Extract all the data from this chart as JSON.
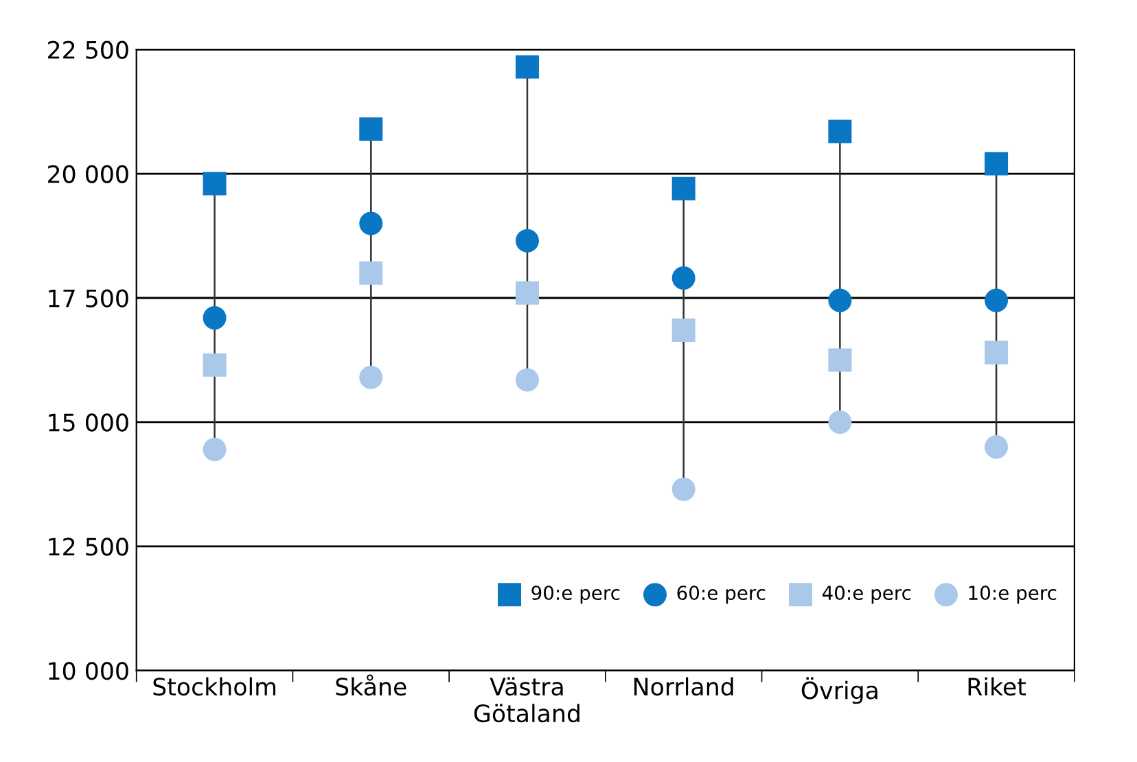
{
  "chart_data": {
    "type": "scatter",
    "categories": [
      "Stockholm",
      "Skåne",
      "Västra\nGötaland",
      "Norrland",
      "Övriga",
      "Riket"
    ],
    "series": [
      {
        "name": "90:e perc",
        "color": "#0a77c5",
        "marker": "square",
        "values": [
          19800,
          20900,
          22150,
          19700,
          20850,
          20200
        ]
      },
      {
        "name": "60:e perc",
        "color": "#0a77c5",
        "marker": "circle",
        "values": [
          17100,
          19000,
          18650,
          17900,
          17450,
          17450
        ]
      },
      {
        "name": "40:e perc",
        "color": "#aac8ea",
        "marker": "square",
        "values": [
          16150,
          18000,
          17600,
          16850,
          16250,
          16400
        ]
      },
      {
        "name": "10:e perc",
        "color": "#aac8ea",
        "marker": "circle",
        "values": [
          14450,
          15900,
          15850,
          13650,
          15000,
          14500
        ]
      }
    ],
    "ylim": [
      10000,
      22500
    ],
    "yticks": [
      {
        "value": 10000,
        "label": "10 000"
      },
      {
        "value": 12500,
        "label": "12 500"
      },
      {
        "value": 15000,
        "label": "15 000"
      },
      {
        "value": 17500,
        "label": "17 500"
      },
      {
        "value": 20000,
        "label": "20 000"
      },
      {
        "value": 22500,
        "label": "22 500"
      }
    ],
    "grid": "y",
    "legend": "bottom right"
  }
}
